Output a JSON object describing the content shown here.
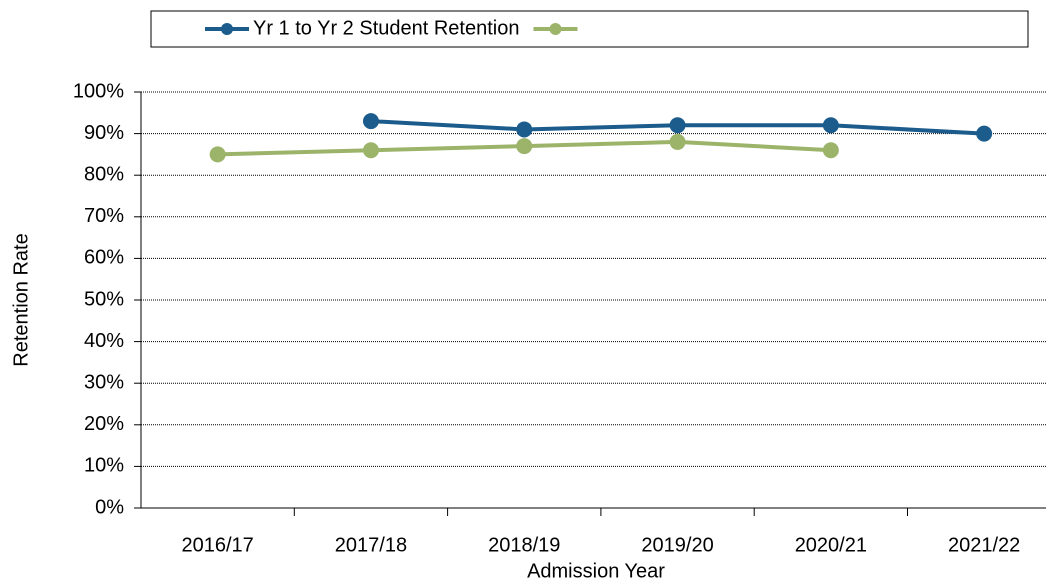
{
  "chart_data": {
    "type": "line",
    "xlabel": "Admission Year",
    "ylabel": "Retention Rate",
    "categories": [
      "2016/17",
      "2017/18",
      "2018/19",
      "2019/20",
      "2020/21",
      "2021/22"
    ],
    "series": [
      {
        "name": "Yr 1 to Yr 2 Student Retention",
        "color": "#1b5c8c",
        "values": [
          null,
          93,
          91,
          92,
          92,
          90
        ]
      },
      {
        "color": "#9cb46a",
        "values": [
          85,
          86,
          87,
          88,
          86,
          null
        ]
      }
    ],
    "ylim": [
      0,
      100
    ],
    "yticks": [
      {
        "value": 0,
        "label": "0%"
      },
      {
        "value": 10,
        "label": "10%"
      },
      {
        "value": 20,
        "label": "20%"
      },
      {
        "value": 30,
        "label": "30%"
      },
      {
        "value": 40,
        "label": "40%"
      },
      {
        "value": 50,
        "label": "50%"
      },
      {
        "value": 60,
        "label": "60%"
      },
      {
        "value": 70,
        "label": "70%"
      },
      {
        "value": 80,
        "label": "80%"
      },
      {
        "value": 90,
        "label": "90%"
      },
      {
        "value": 100,
        "label": "100%"
      }
    ],
    "grid": true,
    "legend": "top"
  }
}
